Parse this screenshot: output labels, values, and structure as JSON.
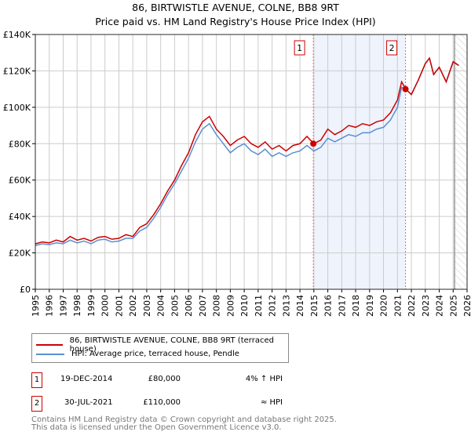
{
  "title": "86, BIRTWISTLE AVENUE, COLNE, BB8 9RT",
  "subtitle": "Price paid vs. HM Land Registry's House Price Index (HPI)",
  "chart_data": {
    "type": "line",
    "xlim": [
      1995,
      2026
    ],
    "ylim": [
      0,
      140000
    ],
    "x_ticks": [
      "1995",
      "1996",
      "1997",
      "1998",
      "1999",
      "2000",
      "2001",
      "2002",
      "2003",
      "2004",
      "2005",
      "2006",
      "2007",
      "2008",
      "2009",
      "2010",
      "2011",
      "2012",
      "2013",
      "2014",
      "2015",
      "2016",
      "2017",
      "2018",
      "2019",
      "2020",
      "2021",
      "2022",
      "2023",
      "2024",
      "2025",
      "2026"
    ],
    "y_ticks": [
      {
        "v": 0,
        "l": "£0"
      },
      {
        "v": 20000,
        "l": "£20K"
      },
      {
        "v": 40000,
        "l": "£40K"
      },
      {
        "v": 60000,
        "l": "£60K"
      },
      {
        "v": 80000,
        "l": "£80K"
      },
      {
        "v": 100000,
        "l": "£100K"
      },
      {
        "v": 120000,
        "l": "£120K"
      },
      {
        "v": 140000,
        "l": "£140K"
      }
    ],
    "grid": true,
    "shaded_region": [
      2014.96,
      2021.58
    ],
    "forecast_hatch_from": 2025.1,
    "series": [
      {
        "name": "86, BIRTWISTLE AVENUE, COLNE, BB8 9RT (terraced house)",
        "color": "#cc0000",
        "x": [
          1995,
          1995.5,
          1996,
          1996.5,
          1997,
          1997.5,
          1998,
          1998.5,
          1999,
          1999.5,
          2000,
          2000.5,
          2001,
          2001.5,
          2002,
          2002.5,
          2003,
          2003.5,
          2004,
          2004.5,
          2005,
          2005.5,
          2006,
          2006.5,
          2007,
          2007.5,
          2008,
          2008.5,
          2009,
          2009.5,
          2010,
          2010.5,
          2011,
          2011.5,
          2012,
          2012.5,
          2013,
          2013.5,
          2014,
          2014.5,
          2015,
          2015.5,
          2016,
          2016.5,
          2017,
          2017.5,
          2018,
          2018.5,
          2019,
          2019.5,
          2020,
          2020.5,
          2021,
          2021.3,
          2021.6,
          2022,
          2022.5,
          2023,
          2023.3,
          2023.6,
          2024,
          2024.5,
          2025,
          2025.4
        ],
        "values": [
          25000,
          26000,
          25500,
          27000,
          26000,
          29000,
          27000,
          28000,
          26500,
          28500,
          29000,
          27500,
          28000,
          30000,
          29000,
          34000,
          36000,
          41000,
          47000,
          54000,
          60000,
          68000,
          75000,
          85000,
          92000,
          95000,
          88000,
          84000,
          79000,
          82000,
          84000,
          80000,
          78000,
          81000,
          77000,
          79000,
          76000,
          79000,
          80000,
          84000,
          80000,
          82000,
          88000,
          85000,
          87000,
          90000,
          89000,
          91000,
          90000,
          92000,
          93000,
          97000,
          104000,
          114000,
          110000,
          107000,
          115000,
          124000,
          127000,
          118000,
          122000,
          114000,
          125000,
          123000
        ]
      },
      {
        "name": "HPI: Average price, terraced house, Pendle",
        "color": "#5b8fd0",
        "x": [
          1995,
          1995.5,
          1996,
          1996.5,
          1997,
          1997.5,
          1998,
          1998.5,
          1999,
          1999.5,
          2000,
          2000.5,
          2001,
          2001.5,
          2002,
          2002.5,
          2003,
          2003.5,
          2004,
          2004.5,
          2005,
          2005.5,
          2006,
          2006.5,
          2007,
          2007.5,
          2008,
          2008.5,
          2009,
          2009.5,
          2010,
          2010.5,
          2011,
          2011.5,
          2012,
          2012.5,
          2013,
          2013.5,
          2014,
          2014.5,
          2015,
          2015.5,
          2016,
          2016.5,
          2017,
          2017.5,
          2018,
          2018.5,
          2019,
          2019.5,
          2020,
          2020.5,
          2021,
          2021.3,
          2021.6,
          2022,
          2022.5,
          2023,
          2023.3,
          2023.6,
          2024,
          2024.5,
          2025,
          2025.4
        ],
        "values": [
          24000,
          25000,
          24500,
          25500,
          25000,
          27000,
          25500,
          26500,
          25000,
          27000,
          27500,
          26000,
          26500,
          28000,
          28000,
          32000,
          34000,
          39000,
          45000,
          52000,
          58000,
          65000,
          72000,
          81000,
          88000,
          91000,
          85000,
          80000,
          75000,
          78000,
          80000,
          76000,
          74000,
          77000,
          73000,
          75000,
          73000,
          75000,
          76000,
          79000,
          76000,
          78000,
          83000,
          81000,
          83000,
          85000,
          84000,
          86000,
          86000,
          88000,
          89000,
          93000,
          100000,
          111000,
          110000,
          107000,
          115000,
          124000,
          127000,
          118000,
          122000,
          114000,
          125000,
          123000
        ]
      }
    ],
    "sales": [
      {
        "label": "1",
        "x": 2014.96,
        "value": 80000
      },
      {
        "label": "2",
        "x": 2021.58,
        "value": 110000
      }
    ]
  },
  "legend": {
    "items": [
      {
        "label": "86, BIRTWISTLE AVENUE, COLNE, BB8 9RT (terraced house)",
        "color": "#cc0000"
      },
      {
        "label": "HPI: Average price, terraced house, Pendle",
        "color": "#5b8fd0"
      }
    ]
  },
  "transactions": [
    {
      "num": "1",
      "date": "19-DEC-2014",
      "price": "£80,000",
      "hpi": "4% ↑ HPI"
    },
    {
      "num": "2",
      "date": "30-JUL-2021",
      "price": "£110,000",
      "hpi": "≈ HPI"
    }
  ],
  "footer": {
    "line1": "Contains HM Land Registry data © Crown copyright and database right 2025.",
    "line2": "This data is licensed under the Open Government Licence v3.0."
  }
}
